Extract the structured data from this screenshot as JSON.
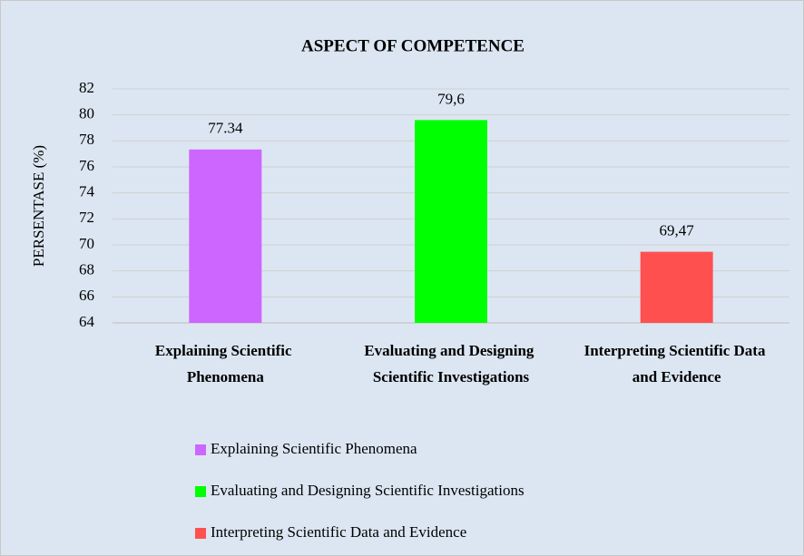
{
  "chart_data": {
    "type": "bar",
    "title": "ASPECT OF COMPETENCE",
    "y_label": "PERSENTASE (%)",
    "categories": [
      "Explaining Scientific Phenomena",
      "Evaluating and Designing Scientific Investigations",
      "Interpreting Scientific Data and Evidence"
    ],
    "values": [
      77.34,
      79.6,
      69.47
    ],
    "value_labels": [
      "77.34",
      "79,6",
      "69,47"
    ],
    "colors": [
      "#cc66ff",
      "#00ff00",
      "#ff5050"
    ],
    "ylim": [
      64,
      82
    ],
    "yticks": [
      64,
      66,
      68,
      70,
      72,
      74,
      76,
      78,
      80,
      82
    ],
    "grid": true,
    "legend": "bottom"
  }
}
